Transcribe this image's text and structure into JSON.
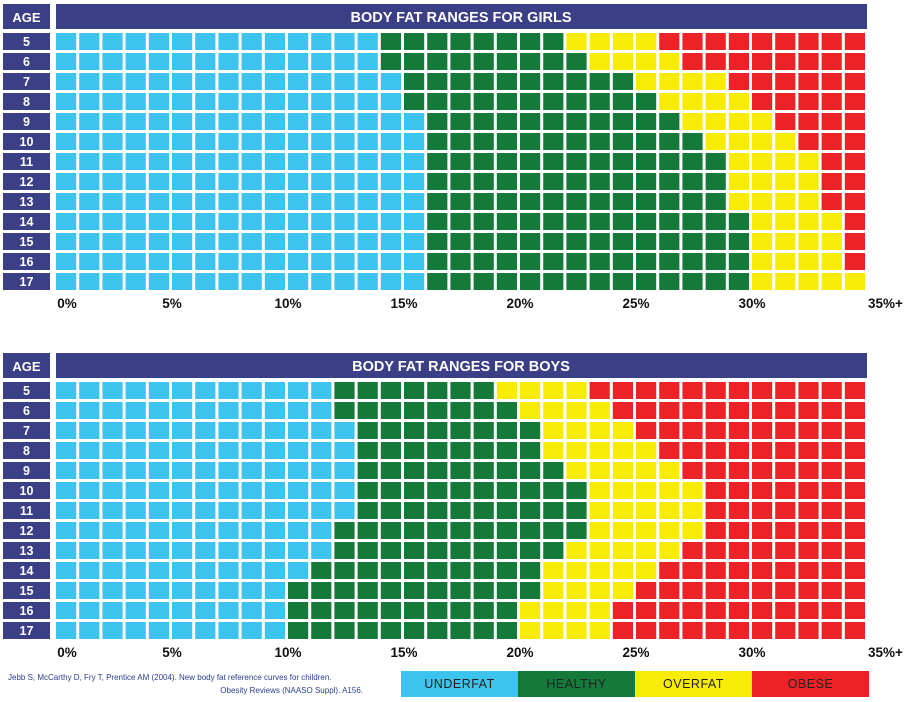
{
  "colors": {
    "header_bg": "#3b3f86",
    "underfat": "#3cc3ee",
    "healthy": "#15793a",
    "overfat": "#f8ec06",
    "obese": "#ec2227",
    "axis_text": "#111111"
  },
  "chart_data": [
    {
      "type": "heatmap",
      "title": "BODY FAT RANGES FOR GIRLS",
      "row_header": "AGE",
      "ages": [
        "5",
        "6",
        "7",
        "8",
        "9",
        "10",
        "11",
        "12",
        "13",
        "14",
        "15",
        "16",
        "17"
      ],
      "x_ticks": [
        "0%",
        "5%",
        "10%",
        "15%",
        "20%",
        "25%",
        "30%",
        "35%+"
      ],
      "xlim": [
        0,
        35
      ],
      "categories": [
        "UNDERFAT",
        "HEALTHY",
        "OVERFAT",
        "OBESE"
      ],
      "thresholds": [
        {
          "age": "5",
          "healthy_from": 14,
          "overfat_from": 22,
          "obese_from": 26
        },
        {
          "age": "6",
          "healthy_from": 14,
          "overfat_from": 23,
          "obese_from": 27
        },
        {
          "age": "7",
          "healthy_from": 15,
          "overfat_from": 25,
          "obese_from": 29
        },
        {
          "age": "8",
          "healthy_from": 15,
          "overfat_from": 26,
          "obese_from": 30
        },
        {
          "age": "9",
          "healthy_from": 16,
          "overfat_from": 27,
          "obese_from": 31
        },
        {
          "age": "10",
          "healthy_from": 16,
          "overfat_from": 28,
          "obese_from": 32
        },
        {
          "age": "11",
          "healthy_from": 16,
          "overfat_from": 29,
          "obese_from": 33
        },
        {
          "age": "12",
          "healthy_from": 16,
          "overfat_from": 29,
          "obese_from": 33
        },
        {
          "age": "13",
          "healthy_from": 16,
          "overfat_from": 29,
          "obese_from": 33
        },
        {
          "age": "14",
          "healthy_from": 16,
          "overfat_from": 30,
          "obese_from": 34
        },
        {
          "age": "15",
          "healthy_from": 16,
          "overfat_from": 30,
          "obese_from": 34
        },
        {
          "age": "16",
          "healthy_from": 16,
          "overfat_from": 30,
          "obese_from": 34
        },
        {
          "age": "17",
          "healthy_from": 16,
          "overfat_from": 30,
          "obese_from": 35
        }
      ]
    },
    {
      "type": "heatmap",
      "title": "BODY FAT RANGES FOR BOYS",
      "row_header": "AGE",
      "ages": [
        "5",
        "6",
        "7",
        "8",
        "9",
        "10",
        "11",
        "12",
        "13",
        "14",
        "15",
        "16",
        "17"
      ],
      "x_ticks": [
        "0%",
        "5%",
        "10%",
        "15%",
        "20%",
        "25%",
        "30%",
        "35%+"
      ],
      "xlim": [
        0,
        35
      ],
      "categories": [
        "UNDERFAT",
        "HEALTHY",
        "OVERFAT",
        "OBESE"
      ],
      "thresholds": [
        {
          "age": "5",
          "healthy_from": 12,
          "overfat_from": 19,
          "obese_from": 23
        },
        {
          "age": "6",
          "healthy_from": 12,
          "overfat_from": 20,
          "obese_from": 24
        },
        {
          "age": "7",
          "healthy_from": 13,
          "overfat_from": 21,
          "obese_from": 25
        },
        {
          "age": "8",
          "healthy_from": 13,
          "overfat_from": 21,
          "obese_from": 26
        },
        {
          "age": "9",
          "healthy_from": 13,
          "overfat_from": 22,
          "obese_from": 27
        },
        {
          "age": "10",
          "healthy_from": 13,
          "overfat_from": 23,
          "obese_from": 28
        },
        {
          "age": "11",
          "healthy_from": 13,
          "overfat_from": 23,
          "obese_from": 28
        },
        {
          "age": "12",
          "healthy_from": 12,
          "overfat_from": 23,
          "obese_from": 28
        },
        {
          "age": "13",
          "healthy_from": 12,
          "overfat_from": 22,
          "obese_from": 27
        },
        {
          "age": "14",
          "healthy_from": 11,
          "overfat_from": 21,
          "obese_from": 26
        },
        {
          "age": "15",
          "healthy_from": 10,
          "overfat_from": 21,
          "obese_from": 25
        },
        {
          "age": "16",
          "healthy_from": 10,
          "overfat_from": 20,
          "obese_from": 24
        },
        {
          "age": "17",
          "healthy_from": 10,
          "overfat_from": 20,
          "obese_from": 24
        }
      ]
    }
  ],
  "legend": [
    {
      "label": "UNDERFAT",
      "color": "#3cc3ee"
    },
    {
      "label": "HEALTHY",
      "color": "#15793a"
    },
    {
      "label": "OVERFAT",
      "color": "#f8ec06"
    },
    {
      "label": "OBESE",
      "color": "#ec2227"
    }
  ],
  "citation": {
    "line1": "Jebb S, McCarthy D, Fry T, Prentice AM (2004).  New body fat reference curves for children.",
    "line2": "Obesity Reviews (NAASO Suppl). A156."
  }
}
